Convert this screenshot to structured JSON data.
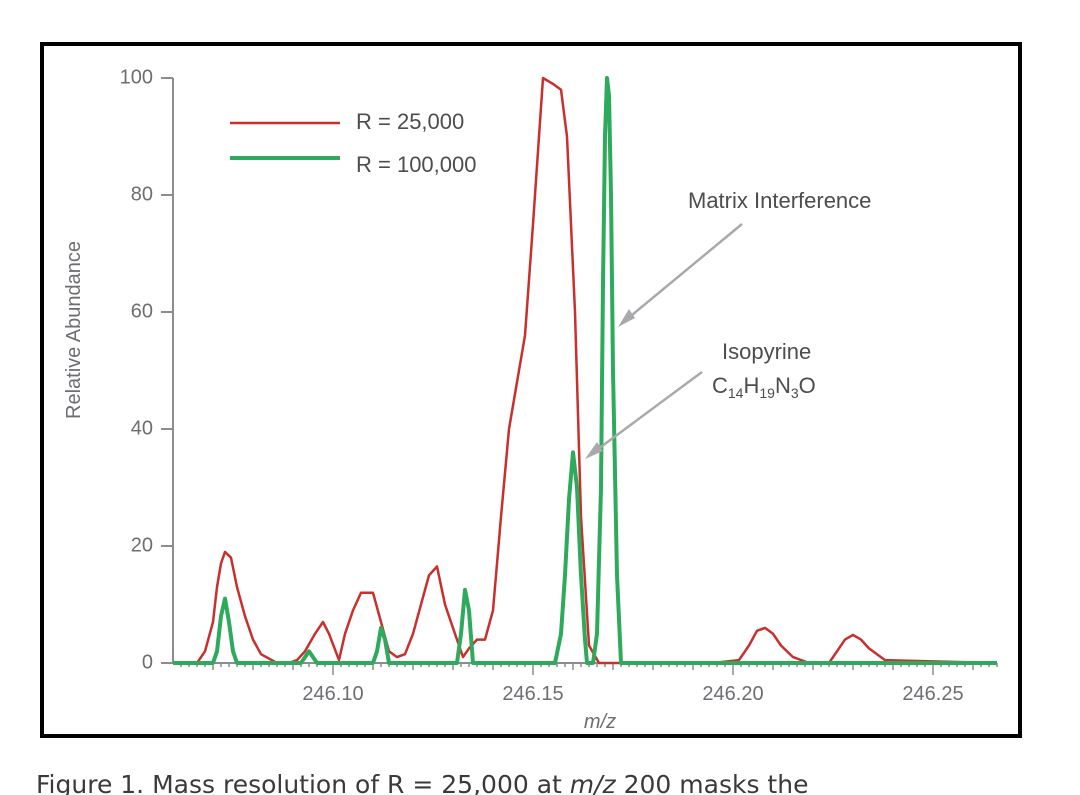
{
  "chart_data": {
    "type": "line",
    "xlabel": "m/z",
    "ylabel": "Relative Abundance",
    "xlim": [
      246.06,
      246.266
    ],
    "ylim": [
      0,
      100
    ],
    "xticks": [
      "246.10",
      "246.15",
      "246.20",
      "246.25"
    ],
    "xtick_values": [
      246.1,
      246.15,
      246.2,
      246.25
    ],
    "yticks": [
      "0",
      "20",
      "40",
      "60",
      "80",
      "100"
    ],
    "ytick_values": [
      0,
      20,
      40,
      60,
      80,
      100
    ],
    "grid": false,
    "legend_position": "top-left",
    "series": [
      {
        "name": "R = 25,000",
        "color": "#c8302e",
        "x": [
          246.06,
          246.064,
          246.066,
          246.068,
          246.07,
          246.071,
          246.072,
          246.073,
          246.0745,
          246.076,
          246.078,
          246.08,
          246.082,
          246.086,
          246.089,
          246.091,
          246.093,
          246.0955,
          246.0975,
          246.099,
          246.1015,
          246.103,
          246.105,
          246.107,
          246.11,
          246.112,
          246.114,
          246.116,
          246.118,
          246.12,
          246.122,
          246.124,
          246.126,
          246.128,
          246.1305,
          246.1325,
          246.134,
          246.136,
          246.138,
          246.14,
          246.142,
          246.144,
          246.146,
          246.148,
          246.15,
          246.1525,
          246.155,
          246.157,
          246.1585,
          246.1605,
          246.162,
          246.164,
          246.1665,
          246.168,
          246.169,
          246.17,
          246.172,
          246.174,
          246.176,
          246.178,
          246.18,
          246.185,
          246.195,
          246.2015,
          246.204,
          246.206,
          246.208,
          246.21,
          246.212,
          246.215,
          246.219,
          246.224,
          246.226,
          246.228,
          246.23,
          246.232,
          246.234,
          246.238,
          246.266
        ],
        "y": [
          0,
          0,
          0,
          2,
          7,
          13,
          17,
          19,
          18,
          13,
          8,
          4,
          1.5,
          0,
          0,
          0.5,
          2,
          5,
          7,
          5,
          0.5,
          5,
          9,
          12,
          12,
          7,
          2,
          1,
          1.5,
          5,
          10,
          15,
          16.5,
          10,
          5,
          1,
          2.5,
          4,
          4,
          9,
          25,
          40,
          48,
          56,
          75,
          100,
          99,
          98,
          90,
          60,
          25,
          3,
          0,
          0,
          0,
          0,
          0,
          0,
          0,
          0,
          0,
          0,
          0,
          0.5,
          3,
          5.5,
          6,
          5,
          3,
          1,
          0,
          0,
          2,
          4,
          4.8,
          4,
          2.5,
          0.5,
          0
        ]
      },
      {
        "name": "R = 100,000",
        "color": "#2eaa5c",
        "x": [
          246.06,
          246.07,
          246.071,
          246.072,
          246.073,
          246.074,
          246.075,
          246.076,
          246.092,
          246.093,
          246.094,
          246.095,
          246.096,
          246.11,
          246.111,
          246.112,
          246.113,
          246.114,
          246.131,
          246.132,
          246.133,
          246.134,
          246.135,
          246.155,
          246.1555,
          246.157,
          246.158,
          246.159,
          246.16,
          246.161,
          246.162,
          246.163,
          246.1635,
          246.165,
          246.166,
          246.167,
          246.1675,
          246.168,
          246.1685,
          246.169,
          246.1695,
          246.17,
          246.171,
          246.172,
          246.204,
          246.205,
          246.206,
          246.207,
          246.208,
          246.226,
          246.227,
          246.228,
          246.229,
          246.23,
          246.266
        ],
        "y": [
          0,
          0,
          2,
          8,
          11,
          7,
          2,
          0,
          0,
          1,
          2,
          1,
          0,
          0,
          2,
          6,
          4,
          0,
          0,
          5,
          12.5,
          9,
          0,
          0,
          0,
          5,
          15,
          28,
          36,
          30,
          15,
          4,
          0,
          0,
          5,
          30,
          65,
          90,
          100,
          97,
          80,
          50,
          15,
          0,
          0,
          0,
          0,
          0,
          0,
          0,
          0,
          0,
          0,
          0,
          0
        ]
      }
    ],
    "annotations": [
      {
        "text": "Matrix Interference"
      },
      {
        "text": "Isopyrine"
      },
      {
        "formula": {
          "C": "C",
          "c_sub": "14",
          "H": "H",
          "h_sub": "19",
          "N": "N",
          "n_sub": "3",
          "O": "O"
        }
      }
    ]
  },
  "caption": {
    "prefix": "Figure 1. Mass resolution of R = 25,000 at ",
    "italic": "m/z",
    "suffix": " 200 masks the"
  }
}
